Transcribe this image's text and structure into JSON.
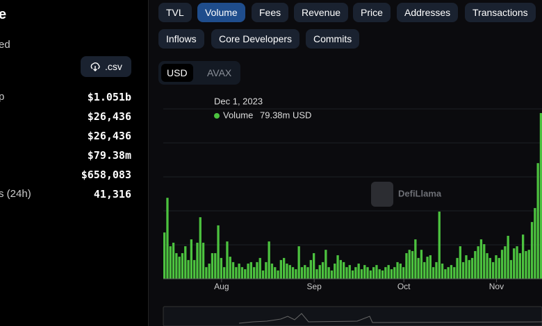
{
  "sidebar": {
    "heading": "e",
    "subheading": "ed",
    "csv_button": ".csv",
    "rows": [
      {
        "label": "p",
        "value": "$1.051b"
      },
      {
        "label": "",
        "value": "$26,436"
      },
      {
        "label": "",
        "value": "$26,436"
      },
      {
        "label": "",
        "value": "$79.38m"
      },
      {
        "label": "",
        "value": "$658,083"
      },
      {
        "label": "s (24h)",
        "value": "41,316"
      }
    ]
  },
  "tabs": [
    "TVL",
    "Volume",
    "Fees",
    "Revenue",
    "Price",
    "Addresses",
    "Transactions",
    "Inflows",
    "Core Developers",
    "Commits"
  ],
  "active_tab": "Volume",
  "currency_toggle": [
    "USD",
    "AVAX"
  ],
  "active_currency": "USD",
  "watermark": "DefiLlama",
  "tooltip": {
    "date": "Dec 1, 2023",
    "series": "Volume",
    "value": "79.38m USD"
  },
  "chart": {
    "type": "bar",
    "color": "#4cc23f",
    "categories": [
      null,
      null,
      null,
      null,
      null,
      null,
      null,
      null,
      null,
      null,
      null,
      null,
      null,
      null,
      null,
      null,
      null,
      null,
      null,
      "Aug",
      null,
      null,
      null,
      null,
      null,
      null,
      null,
      null,
      null,
      null,
      null,
      null,
      null,
      null,
      null,
      null,
      null,
      null,
      null,
      null,
      null,
      null,
      null,
      null,
      null,
      null,
      null,
      null,
      null,
      null,
      "Sep",
      null,
      null,
      null,
      null,
      null,
      null,
      null,
      null,
      null,
      null,
      null,
      null,
      null,
      null,
      null,
      null,
      null,
      null,
      null,
      null,
      null,
      null,
      null,
      null,
      null,
      null,
      null,
      null,
      null,
      "Oct",
      null,
      null,
      null,
      null,
      null,
      null,
      null,
      null,
      null,
      null,
      null,
      null,
      null,
      null,
      null,
      null,
      null,
      null,
      null,
      null,
      null,
      null,
      null,
      null,
      null,
      null,
      null,
      null,
      null,
      null,
      "Nov",
      null,
      null,
      null,
      null,
      null,
      null,
      null,
      null,
      null,
      null,
      null,
      null,
      null,
      null,
      null
    ],
    "values": [
      22.2,
      38.8,
      15.6,
      17.3,
      12.3,
      10.6,
      12.3,
      15.6,
      9.0,
      18.9,
      9.0,
      17.3,
      29.5,
      17.3,
      5.6,
      7.3,
      12.3,
      12.3,
      25.6,
      10.0,
      5.6,
      17.9,
      10.6,
      8.0,
      5.6,
      7.3,
      5.6,
      4.6,
      7.3,
      8.0,
      5.6,
      8.0,
      10.0,
      4.0,
      8.0,
      17.9,
      7.3,
      5.6,
      4.0,
      9.0,
      10.0,
      7.3,
      6.6,
      5.6,
      4.6,
      15.6,
      5.6,
      6.6,
      5.6,
      9.0,
      12.3,
      4.6,
      6.6,
      8.0,
      13.9,
      5.6,
      4.0,
      7.3,
      11.3,
      9.0,
      8.0,
      5.6,
      6.6,
      4.0,
      5.6,
      7.3,
      4.6,
      6.6,
      5.6,
      4.0,
      5.6,
      6.6,
      4.6,
      4.0,
      5.6,
      6.6,
      4.6,
      5.6,
      8.0,
      7.3,
      5.6,
      12.3,
      13.9,
      13.3,
      18.9,
      10.0,
      13.9,
      8.0,
      10.6,
      11.3,
      5.6,
      8.0,
      32.2,
      7.3,
      4.6,
      5.6,
      6.6,
      5.6,
      10.0,
      15.6,
      8.0,
      11.3,
      9.0,
      10.0,
      13.3,
      15.6,
      18.9,
      16.6,
      12.3,
      10.0,
      8.0,
      11.3,
      10.0,
      13.9,
      15.6,
      20.6,
      9.0,
      14.6,
      15.6,
      12.3,
      21.2,
      13.3,
      13.9,
      27.2,
      33.9,
      55.4,
      79.38
    ]
  }
}
